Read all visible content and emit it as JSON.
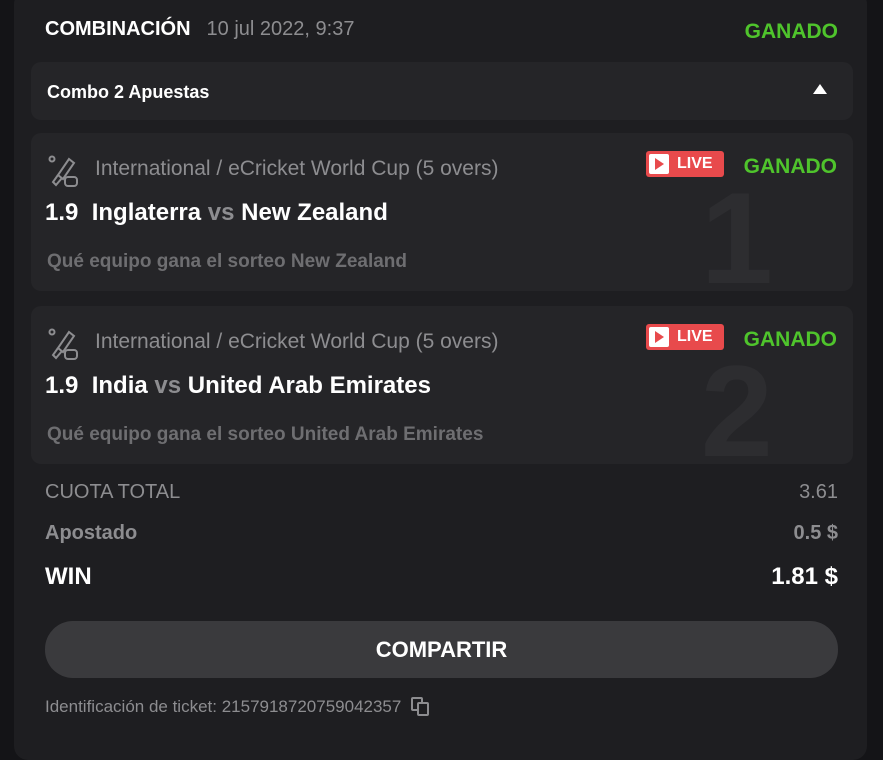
{
  "header": {
    "title": "COMBINACIÓN",
    "date": "10 jul 2022, 9:37",
    "status": "GANADO"
  },
  "combo": {
    "label": "Combo 2 Apuestas"
  },
  "colors": {
    "won": "#4fc42c",
    "live": "#e84a4c"
  },
  "legs": [
    {
      "index": "1",
      "league": "International / eCricket World Cup (5 overs)",
      "live": "LIVE",
      "status": "GANADO",
      "odds": "1.9",
      "home": "Inglaterra",
      "vs": "vs",
      "away": "New Zealand",
      "selection": "Qué equipo gana el sorteo New Zealand",
      "icon": "cricket-esports-icon"
    },
    {
      "index": "2",
      "league": "International / eCricket World Cup (5 overs)",
      "live": "LIVE",
      "status": "GANADO",
      "odds": "1.9",
      "home": "India",
      "vs": "vs",
      "away": "United Arab Emirates",
      "selection": "Qué equipo gana el sorteo United Arab Emirates",
      "icon": "cricket-esports-icon"
    }
  ],
  "summary": {
    "total_odds_label": "CUOTA TOTAL",
    "total_odds": "3.61",
    "stake_label": "Apostado",
    "stake": "0.5 $",
    "win_label": "WIN",
    "win": "1.81 $"
  },
  "share_label": "COMPARTIR",
  "ticket": {
    "label": "Identificación de ticket: 2157918720759042357"
  }
}
